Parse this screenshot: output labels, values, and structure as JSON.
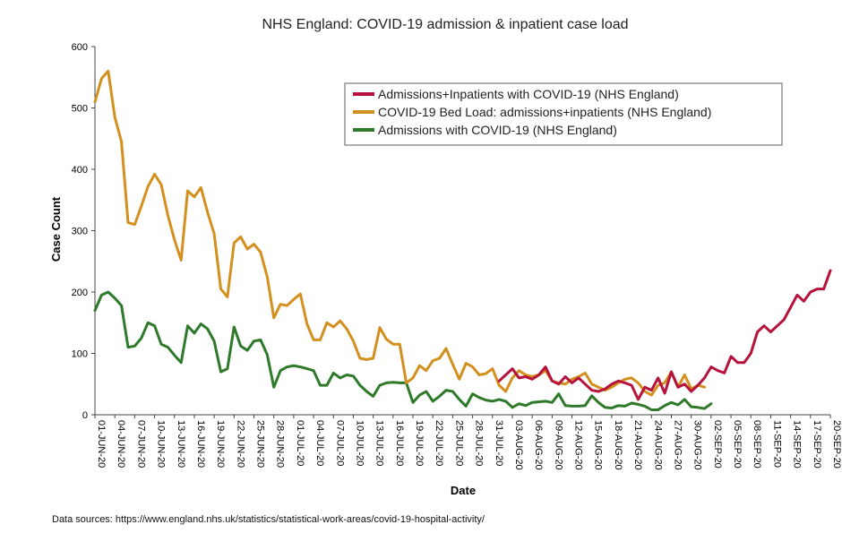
{
  "chart_data": {
    "type": "line",
    "title": "NHS England: COVID-19 admission & inpatient case load",
    "xlabel": "Date",
    "ylabel": "Case Count",
    "ylim": [
      0,
      600
    ],
    "yticks": [
      0,
      100,
      200,
      300,
      400,
      500,
      600
    ],
    "start_date": "2020-06-01",
    "end_date": "2020-09-20",
    "xticks": [
      "01-JUN-20",
      "04-JUN-20",
      "07-JUN-20",
      "10-JUN-20",
      "13-JUN-20",
      "16-JUN-20",
      "19-JUN-20",
      "22-JUN-20",
      "25-JUN-20",
      "28-JUN-20",
      "01-JUL-20",
      "04-JUL-20",
      "07-JUL-20",
      "10-JUL-20",
      "13-JUL-20",
      "16-JUL-20",
      "19-JUL-20",
      "22-JUL-20",
      "25-JUL-20",
      "28-JUL-20",
      "31-JUL-20",
      "03-AUG-20",
      "06-AUG-20",
      "09-AUG-20",
      "12-AUG-20",
      "15-AUG-20",
      "18-AUG-20",
      "21-AUG-20",
      "24-AUG-20",
      "27-AUG-20",
      "30-AUG-20",
      "02-SEP-20",
      "05-SEP-20",
      "08-SEP-20",
      "11-SEP-20",
      "14-SEP-20",
      "17-SEP-20",
      "20-SEP-20"
    ],
    "grid": false,
    "legend_position": "top-right",
    "series": [
      {
        "name": "Admissions+Inpatients with COVID-19 (NHS England)",
        "color": "#b5123c",
        "x": [
          "2020-08-01",
          "2020-08-02",
          "2020-08-03",
          "2020-08-04",
          "2020-08-05",
          "2020-08-06",
          "2020-08-07",
          "2020-08-08",
          "2020-08-09",
          "2020-08-10",
          "2020-08-11",
          "2020-08-12",
          "2020-08-13",
          "2020-08-14",
          "2020-08-15",
          "2020-08-16",
          "2020-08-17",
          "2020-08-18",
          "2020-08-19",
          "2020-08-20",
          "2020-08-21",
          "2020-08-22",
          "2020-08-23",
          "2020-08-24",
          "2020-08-25",
          "2020-08-26",
          "2020-08-27",
          "2020-08-28",
          "2020-08-29",
          "2020-08-30",
          "2020-08-31",
          "2020-09-01",
          "2020-09-02",
          "2020-09-03",
          "2020-09-04",
          "2020-09-05",
          "2020-09-06",
          "2020-09-07",
          "2020-09-08",
          "2020-09-09",
          "2020-09-10",
          "2020-09-11",
          "2020-09-12",
          "2020-09-13",
          "2020-09-14",
          "2020-09-15",
          "2020-09-16",
          "2020-09-17",
          "2020-09-18",
          "2020-09-19",
          "2020-09-20"
        ],
        "values": [
          55,
          65,
          75,
          60,
          62,
          58,
          65,
          78,
          55,
          50,
          62,
          52,
          60,
          50,
          40,
          38,
          42,
          50,
          55,
          52,
          48,
          25,
          45,
          40,
          60,
          35,
          70,
          45,
          50,
          38,
          48,
          60,
          78,
          72,
          68,
          95,
          85,
          85,
          100,
          135,
          145,
          135,
          145,
          155,
          175,
          195,
          185,
          200,
          205,
          205,
          235
        ]
      },
      {
        "name": "COVID-19 Bed Load: admissions+inpatients (NHS England)",
        "color": "#d4901e",
        "x": [
          "2020-06-01",
          "2020-06-02",
          "2020-06-03",
          "2020-06-04",
          "2020-06-05",
          "2020-06-06",
          "2020-06-07",
          "2020-06-08",
          "2020-06-09",
          "2020-06-10",
          "2020-06-11",
          "2020-06-12",
          "2020-06-13",
          "2020-06-14",
          "2020-06-15",
          "2020-06-16",
          "2020-06-17",
          "2020-06-18",
          "2020-06-19",
          "2020-06-20",
          "2020-06-21",
          "2020-06-22",
          "2020-06-23",
          "2020-06-24",
          "2020-06-25",
          "2020-06-26",
          "2020-06-27",
          "2020-06-28",
          "2020-06-29",
          "2020-06-30",
          "2020-07-01",
          "2020-07-02",
          "2020-07-03",
          "2020-07-04",
          "2020-07-05",
          "2020-07-06",
          "2020-07-07",
          "2020-07-08",
          "2020-07-09",
          "2020-07-10",
          "2020-07-11",
          "2020-07-12",
          "2020-07-13",
          "2020-07-14",
          "2020-07-15",
          "2020-07-16",
          "2020-07-17",
          "2020-07-18",
          "2020-07-19",
          "2020-07-20",
          "2020-07-21",
          "2020-07-22",
          "2020-07-23",
          "2020-07-24",
          "2020-07-25",
          "2020-07-26",
          "2020-07-27",
          "2020-07-28",
          "2020-07-29",
          "2020-07-30",
          "2020-07-31",
          "2020-08-01",
          "2020-08-02",
          "2020-08-03",
          "2020-08-04",
          "2020-08-05",
          "2020-08-06",
          "2020-08-07",
          "2020-08-08",
          "2020-08-09",
          "2020-08-10",
          "2020-08-11",
          "2020-08-12",
          "2020-08-13",
          "2020-08-14",
          "2020-08-15",
          "2020-08-16",
          "2020-08-17",
          "2020-08-18",
          "2020-08-19",
          "2020-08-20",
          "2020-08-21",
          "2020-08-22",
          "2020-08-23",
          "2020-08-24",
          "2020-08-25",
          "2020-08-26",
          "2020-08-27",
          "2020-08-28",
          "2020-08-29",
          "2020-08-30",
          "2020-08-31",
          "2020-09-01"
        ],
        "values": [
          510,
          548,
          560,
          485,
          445,
          313,
          310,
          340,
          372,
          392,
          375,
          325,
          285,
          252,
          365,
          355,
          370,
          330,
          295,
          205,
          192,
          280,
          290,
          270,
          278,
          265,
          225,
          158,
          180,
          178,
          188,
          197,
          148,
          122,
          122,
          150,
          143,
          153,
          140,
          120,
          92,
          90,
          92,
          142,
          123,
          115,
          115,
          52,
          60,
          80,
          72,
          88,
          92,
          108,
          82,
          58,
          84,
          78,
          65,
          67,
          75,
          48,
          38,
          60,
          72,
          65,
          62,
          65,
          72,
          55,
          52,
          50,
          58,
          62,
          68,
          50,
          45,
          40,
          45,
          52,
          58,
          60,
          52,
          38,
          32,
          48,
          52,
          70,
          45,
          65,
          42,
          48,
          45
        ]
      },
      {
        "name": "Admissions with COVID-19 (NHS England)",
        "color": "#2e7a2a",
        "x": [
          "2020-06-01",
          "2020-06-02",
          "2020-06-03",
          "2020-06-04",
          "2020-06-05",
          "2020-06-06",
          "2020-06-07",
          "2020-06-08",
          "2020-06-09",
          "2020-06-10",
          "2020-06-11",
          "2020-06-12",
          "2020-06-13",
          "2020-06-14",
          "2020-06-15",
          "2020-06-16",
          "2020-06-17",
          "2020-06-18",
          "2020-06-19",
          "2020-06-20",
          "2020-06-21",
          "2020-06-22",
          "2020-06-23",
          "2020-06-24",
          "2020-06-25",
          "2020-06-26",
          "2020-06-27",
          "2020-06-28",
          "2020-06-29",
          "2020-06-30",
          "2020-07-01",
          "2020-07-02",
          "2020-07-03",
          "2020-07-04",
          "2020-07-05",
          "2020-07-06",
          "2020-07-07",
          "2020-07-08",
          "2020-07-09",
          "2020-07-10",
          "2020-07-11",
          "2020-07-12",
          "2020-07-13",
          "2020-07-14",
          "2020-07-15",
          "2020-07-16",
          "2020-07-17",
          "2020-07-18",
          "2020-07-19",
          "2020-07-20",
          "2020-07-21",
          "2020-07-22",
          "2020-07-23",
          "2020-07-24",
          "2020-07-25",
          "2020-07-26",
          "2020-07-27",
          "2020-07-28",
          "2020-07-29",
          "2020-07-30",
          "2020-07-31",
          "2020-08-01",
          "2020-08-02",
          "2020-08-03",
          "2020-08-04",
          "2020-08-05",
          "2020-08-06",
          "2020-08-07",
          "2020-08-08",
          "2020-08-09",
          "2020-08-10",
          "2020-08-11",
          "2020-08-12",
          "2020-08-13",
          "2020-08-14",
          "2020-08-15",
          "2020-08-16",
          "2020-08-17",
          "2020-08-18",
          "2020-08-19",
          "2020-08-20",
          "2020-08-21",
          "2020-08-22",
          "2020-08-23",
          "2020-08-24",
          "2020-08-25",
          "2020-08-26",
          "2020-08-27",
          "2020-08-28",
          "2020-08-29",
          "2020-08-30",
          "2020-08-31",
          "2020-09-01",
          "2020-09-02"
        ],
        "values": [
          170,
          195,
          200,
          190,
          178,
          110,
          112,
          125,
          150,
          145,
          115,
          110,
          97,
          85,
          145,
          133,
          148,
          140,
          120,
          70,
          75,
          143,
          112,
          105,
          120,
          122,
          98,
          45,
          72,
          78,
          80,
          78,
          75,
          72,
          48,
          48,
          68,
          60,
          65,
          63,
          48,
          38,
          30,
          48,
          52,
          53,
          52,
          52,
          20,
          32,
          38,
          22,
          30,
          40,
          38,
          25,
          14,
          34,
          28,
          24,
          22,
          25,
          22,
          12,
          18,
          15,
          20,
          21,
          22,
          20,
          34,
          15,
          14,
          14,
          15,
          31,
          20,
          12,
          11,
          15,
          14,
          19,
          17,
          14,
          8,
          8,
          15,
          20,
          16,
          25,
          13,
          12,
          10,
          18
        ]
      }
    ]
  },
  "source_note": "Data sources: https://www.england.nhs.uk/statistics/statistical-work-areas/covid-19-hospital-activity/"
}
